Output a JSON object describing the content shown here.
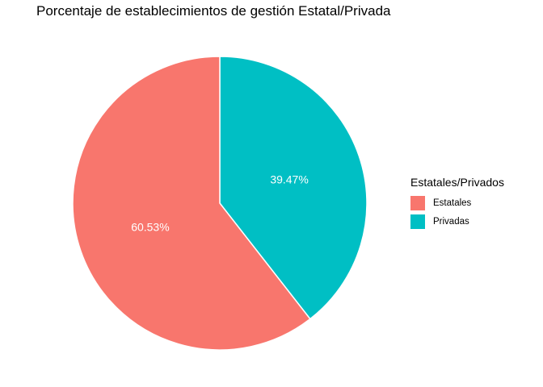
{
  "chart_data": {
    "type": "pie",
    "title": "Porcentaje de establecimientos de gestión Estatal/Privada",
    "legend_title": "Estatales/Privados",
    "legend_position": "right",
    "slices": [
      {
        "name": "Estatales",
        "value": 60.53,
        "label": "60.53%",
        "color": "#F8766D"
      },
      {
        "name": "Privadas",
        "value": 39.47,
        "label": "39.47%",
        "color": "#00BFC4"
      }
    ]
  }
}
